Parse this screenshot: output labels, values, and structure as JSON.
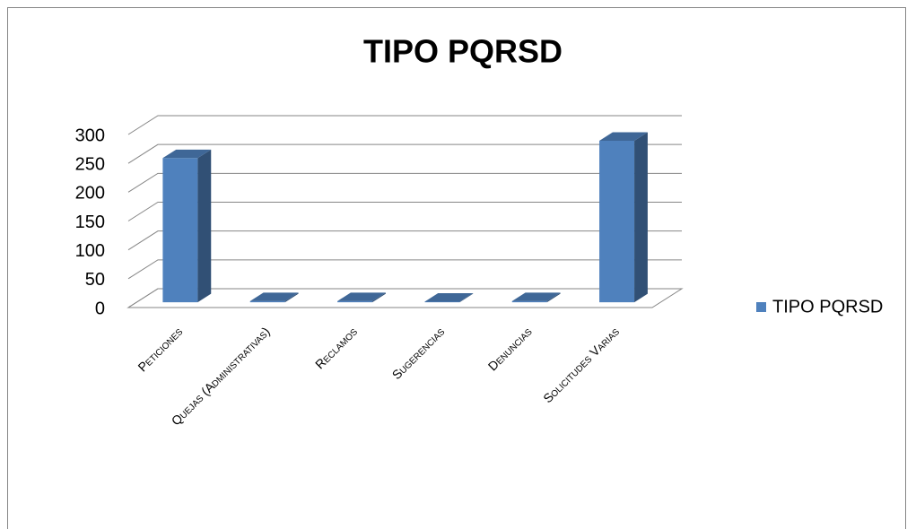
{
  "chart_data": {
    "type": "bar3d",
    "title": "TIPO PQRSD",
    "categories": [
      "Peticiones",
      "Quejas (Administrativas)",
      "Reclamos",
      "Sugerencias",
      "Denuncias",
      "Solicitudes Varias"
    ],
    "series": [
      {
        "name": "TIPO PQRSD",
        "color": "#4f81bd",
        "values": [
          250,
          2,
          2,
          1,
          2,
          280
        ]
      }
    ],
    "ylim": [
      0,
      300
    ],
    "yticks": [
      0,
      50,
      100,
      150,
      200,
      250,
      300
    ],
    "grid": true,
    "legend": "right"
  }
}
